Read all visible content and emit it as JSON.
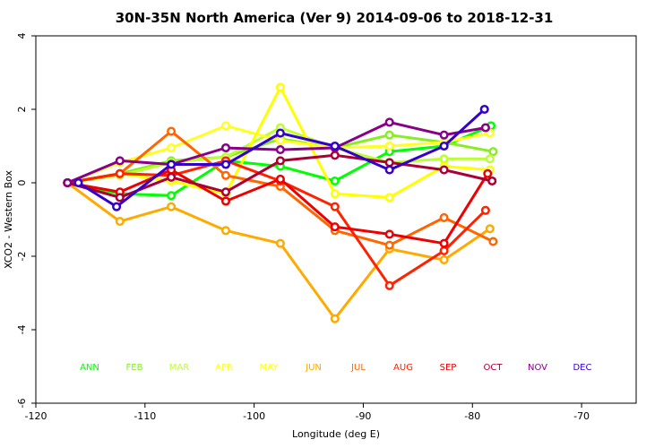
{
  "chart_data": {
    "type": "line",
    "title": "30N-35N North America (Ver 9)   2014-09-06 to 2018-12-31",
    "xlabel": "Longitude (deg E)",
    "ylabel": "XCO2 - Western Box",
    "xlim": [
      -120,
      -65
    ],
    "ylim": [
      -6,
      4
    ],
    "xticks": [
      -120,
      -110,
      -100,
      -90,
      -80,
      -70
    ],
    "yticks": [
      -6,
      -4,
      -2,
      0,
      2,
      4
    ],
    "legend_placement": "bottom, horizontal inside plot",
    "series": [
      {
        "name": "ANN",
        "color": "#00ff00",
        "x": [
          -117.1,
          -112.3,
          -107.6,
          -102.6,
          -97.6,
          -92.6,
          -87.6,
          -82.6,
          -78.3
        ],
        "y": [
          0.0,
          -0.3,
          -0.35,
          0.6,
          0.45,
          0.05,
          0.85,
          1.0,
          1.55
        ]
      },
      {
        "name": "FEB",
        "color": "#88ee22",
        "x": [
          -117.1,
          -112.3,
          -107.6,
          -102.6,
          -97.6,
          -92.6,
          -87.6,
          -82.6,
          -78.1
        ],
        "y": [
          0.0,
          0.25,
          0.6,
          0.7,
          1.2,
          0.95,
          1.3,
          1.1,
          0.85
        ]
      },
      {
        "name": "MAR",
        "color": "#bbff33",
        "x": [
          -117.1,
          -112.3,
          -107.6,
          -102.6,
          -97.6,
          -92.6,
          -87.6,
          -82.6,
          -78.4
        ],
        "y": [
          0.0,
          0.2,
          0.55,
          0.7,
          1.5,
          0.95,
          0.55,
          0.65,
          0.65
        ]
      },
      {
        "name": "APR",
        "color": "#ffff22",
        "x": [
          -117.1,
          -112.3,
          -107.6,
          -102.6,
          -97.6,
          -92.6,
          -87.6,
          -82.6,
          -78.4
        ],
        "y": [
          0.0,
          0.55,
          0.95,
          1.55,
          1.15,
          0.95,
          1.0,
          1.1,
          1.35
        ]
      },
      {
        "name": "MAY",
        "color": "#ffff00",
        "x": [
          -117.1,
          -112.3,
          -107.6,
          -102.6,
          -97.6,
          -92.6,
          -87.6,
          -82.6,
          -78.4
        ],
        "y": [
          0.0,
          0.25,
          0.05,
          -0.3,
          2.6,
          -0.3,
          -0.4,
          0.45,
          0.35
        ]
      },
      {
        "name": "JUN",
        "color": "#ffaa00",
        "x": [
          -117.1,
          -112.3,
          -107.6,
          -102.6,
          -97.6,
          -92.6,
          -87.6,
          -82.6,
          -78.4
        ],
        "y": [
          0.0,
          -1.05,
          -0.65,
          -1.3,
          -1.65,
          -3.7,
          -1.8,
          -2.1,
          -1.25
        ]
      },
      {
        "name": "JUL",
        "color": "#ff6600",
        "x": [
          -117.1,
          -112.3,
          -107.6,
          -102.6,
          -97.6,
          -92.6,
          -87.6,
          -82.6,
          -78.1
        ],
        "y": [
          0.0,
          0.25,
          1.4,
          0.2,
          -0.1,
          -1.3,
          -1.7,
          -0.95,
          -1.6
        ]
      },
      {
        "name": "AUG",
        "color": "#ff2200",
        "x": [
          -117.1,
          -112.3,
          -107.6,
          -102.6,
          -97.6,
          -92.6,
          -87.6,
          -82.6,
          -78.8
        ],
        "y": [
          0.0,
          0.25,
          0.2,
          0.6,
          0.05,
          -0.65,
          -2.8,
          -1.85,
          -0.75
        ]
      },
      {
        "name": "SEP",
        "color": "#ee0000",
        "x": [
          -117.1,
          -112.3,
          -107.6,
          -102.6,
          -97.6,
          -92.6,
          -87.6,
          -82.6,
          -78.6
        ],
        "y": [
          0.0,
          -0.25,
          0.35,
          -0.5,
          0.1,
          -1.2,
          -1.4,
          -1.65,
          0.25
        ]
      },
      {
        "name": "OCT",
        "color": "#aa0033",
        "x": [
          -117.1,
          -112.3,
          -107.6,
          -102.6,
          -97.6,
          -92.6,
          -87.6,
          -82.6,
          -78.2
        ],
        "y": [
          0.0,
          -0.4,
          0.15,
          -0.25,
          0.6,
          0.75,
          0.55,
          0.35,
          0.05
        ]
      },
      {
        "name": "NOV",
        "color": "#880088",
        "x": [
          -117.1,
          -112.3,
          -107.6,
          -102.6,
          -97.6,
          -92.6,
          -87.6,
          -82.6,
          -78.8
        ],
        "y": [
          0.0,
          0.6,
          0.5,
          0.95,
          0.9,
          0.95,
          1.65,
          1.3,
          1.5
        ]
      },
      {
        "name": "DEC",
        "color": "#3300cc",
        "x": [
          -116.1,
          -112.6,
          -107.6,
          -102.6,
          -97.6,
          -92.6,
          -87.6,
          -82.6,
          -78.9
        ],
        "y": [
          0.0,
          -0.65,
          0.5,
          0.5,
          1.35,
          1.0,
          0.35,
          1.0,
          2.0
        ]
      }
    ]
  }
}
